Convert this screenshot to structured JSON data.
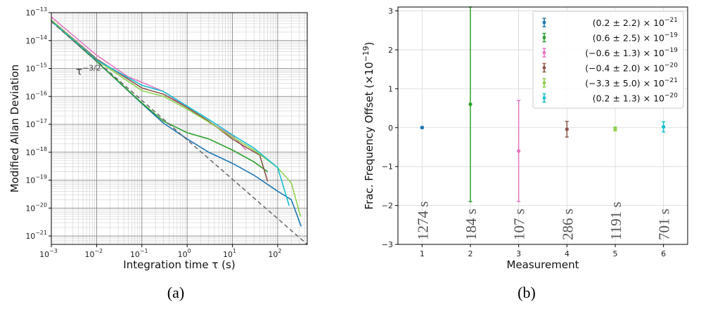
{
  "chart_data": [
    {
      "type": "line",
      "panel_label": "(a)",
      "xlabel": "Integration time τ (s)",
      "ylabel": "Modified Allan Deviation",
      "xscale": "log",
      "yscale": "log",
      "xlim": [
        0.001,
        450
      ],
      "ylim": [
        5e-22,
        1e-13
      ],
      "x_ticks": [
        0.001,
        0.01,
        0.1,
        1,
        10,
        100
      ],
      "x_tick_labels": [
        "10",
        "10",
        "10",
        "10",
        "10",
        "10"
      ],
      "x_tick_exps": [
        "−3",
        "−2",
        "−1",
        "0",
        "1",
        "2"
      ],
      "y_ticks": [
        1e-21,
        1e-20,
        1e-19,
        1e-18,
        1e-17,
        1e-16,
        1e-15,
        1e-14,
        1e-13
      ],
      "y_tick_labels": [
        "10",
        "10",
        "10",
        "10",
        "10",
        "10",
        "10",
        "10",
        "10"
      ],
      "y_tick_exps": [
        "−21",
        "−20",
        "−19",
        "−18",
        "−17",
        "−16",
        "−15",
        "−14",
        "−13"
      ],
      "grid": true,
      "annotation": {
        "text": "τ",
        "sup": "−3/2",
        "x": 0.0035,
        "y": 6e-16
      },
      "series": [
        {
          "color": "#1f77b4",
          "x": [
            0.001,
            0.01,
            0.1,
            0.3,
            1,
            3,
            10,
            30,
            100,
            200,
            330
          ],
          "y": [
            5e-14,
            1.8e-15,
            5.5e-17,
            1.1e-17,
            3e-18,
            1e-18,
            4e-19,
            1.5e-19,
            4e-20,
            2e-20,
            2.2e-21
          ]
        },
        {
          "color": "#2ca02c",
          "x": [
            0.001,
            0.01,
            0.1,
            0.3,
            1,
            3,
            10,
            30,
            60
          ],
          "y": [
            5e-14,
            1.8e-15,
            5.8e-17,
            1.3e-17,
            5e-18,
            3e-18,
            1.2e-18,
            4.5e-19,
            2e-19
          ]
        },
        {
          "color": "#e377c2",
          "x": [
            0.001,
            0.01,
            0.05,
            0.1,
            0.3,
            1,
            3,
            10,
            20
          ],
          "y": [
            7e-14,
            3e-15,
            5e-16,
            3.2e-16,
            1.5e-16,
            4e-17,
            1.2e-17,
            4e-18,
            1.2e-18
          ]
        },
        {
          "color": "#8c564b",
          "x": [
            0.001,
            0.01,
            0.1,
            0.3,
            1,
            3,
            10,
            20,
            40,
            60
          ],
          "y": [
            5.5e-14,
            2.2e-15,
            2e-16,
            1.2e-16,
            4e-17,
            1.3e-17,
            3e-18,
            1.5e-18,
            8e-19,
            9e-20
          ]
        },
        {
          "color": "#8fd14f",
          "x": [
            0.001,
            0.01,
            0.1,
            0.3,
            1,
            3,
            10,
            30,
            100,
            200,
            320
          ],
          "y": [
            5.5e-14,
            2e-15,
            1.6e-16,
            1e-16,
            3.5e-17,
            1.2e-17,
            3.5e-18,
            1.2e-18,
            2.8e-19,
            8e-20,
            5e-21
          ]
        },
        {
          "color": "#17becf",
          "x": [
            0.001,
            0.01,
            0.1,
            0.3,
            1,
            3,
            10,
            30,
            100,
            180
          ],
          "y": [
            5e-14,
            2e-15,
            2.5e-16,
            1.5e-16,
            4.5e-17,
            1.5e-17,
            4.2e-18,
            1.4e-18,
            2.8e-19,
            1.2e-20
          ]
        },
        {
          "color": "#666666",
          "dashed": true,
          "x": [
            0.001,
            450
          ],
          "y": [
            4.8e-14,
            5e-22
          ]
        }
      ]
    },
    {
      "type": "scatter",
      "panel_label": "(b)",
      "xlabel": "Measurement",
      "ylabel": "Frac. Frequency Offset (×10",
      "ylabel_sup": "−19",
      "ylabel_end": ")",
      "xlim": [
        0.5,
        6.5
      ],
      "ylim": [
        -3,
        3.1
      ],
      "x_ticks": [
        1,
        2,
        3,
        4,
        5,
        6
      ],
      "y_ticks": [
        -3,
        -2,
        -1,
        0,
        1,
        2,
        3
      ],
      "x_tick_labels": [
        "1",
        "2",
        "3",
        "4",
        "5",
        "6"
      ],
      "y_tick_labels": [
        "−3",
        "−2",
        "−1",
        "0",
        "1",
        "2",
        "3"
      ],
      "grid": true,
      "legend_position": "top-right",
      "points": [
        {
          "x": 1,
          "y": 0.002,
          "err": 0.022,
          "color": "#1f77b4",
          "legend_main": "(0.2 ± 2.2) × 10",
          "legend_exp": "−21",
          "duration": "1274 s"
        },
        {
          "x": 2,
          "y": 0.6,
          "err": 2.5,
          "color": "#2ca02c",
          "legend_main": "(0.6 ± 2.5) × 10",
          "legend_exp": "−19",
          "duration": "184 s"
        },
        {
          "x": 3,
          "y": -0.6,
          "err": 1.3,
          "color": "#e377c2",
          "legend_main": "(−0.6 ± 1.3) × 10",
          "legend_exp": "−19",
          "duration": "107 s"
        },
        {
          "x": 4,
          "y": -0.04,
          "err": 0.2,
          "color": "#8c564b",
          "legend_main": "(−0.4 ± 2.0) × 10",
          "legend_exp": "−20",
          "duration": "286 s"
        },
        {
          "x": 5,
          "y": -0.033,
          "err": 0.05,
          "color": "#8fd14f",
          "legend_main": "(−3.3 ± 5.0) × 10",
          "legend_exp": "−21",
          "duration": "1191 s"
        },
        {
          "x": 6,
          "y": 0.02,
          "err": 0.13,
          "color": "#17becf",
          "legend_main": "(0.2 ± 1.3) × 10",
          "legend_exp": "−20",
          "duration": "701 s"
        }
      ]
    }
  ]
}
